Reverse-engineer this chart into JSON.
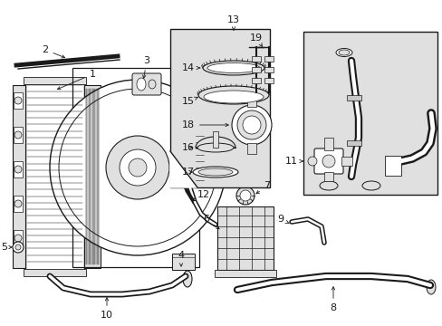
{
  "bg_color": "#ffffff",
  "line_color": "#1a1a1a",
  "gray_fill": "#c8c8c8",
  "light_gray": "#e0e0e0",
  "figsize": [
    4.89,
    3.6
  ],
  "dpi": 100
}
